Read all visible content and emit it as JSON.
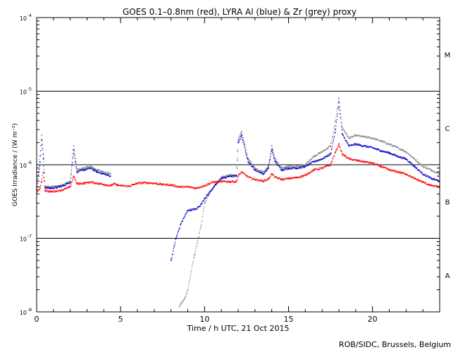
{
  "chart_data": {
    "type": "scatter",
    "title": "GOES 0.1–0.8nm (red), LYRA Al (blue) & Zr (grey) proxy",
    "xlabel": "Time / h UTC, 21 Oct 2015",
    "ylabel": "GOES Irradiance / (W m⁻²)",
    "xlim": [
      0,
      24
    ],
    "ylim": [
      1e-08,
      0.0001
    ],
    "yscale": "log",
    "x_ticks": [
      {
        "value": 0,
        "label": "0"
      },
      {
        "value": 5,
        "label": "5"
      },
      {
        "value": 10,
        "label": "10"
      },
      {
        "value": 15,
        "label": "15"
      },
      {
        "value": 20,
        "label": "20"
      }
    ],
    "y_ticks": [
      {
        "value": 1e-08,
        "base": "10",
        "exp": "-8"
      },
      {
        "value": 1e-07,
        "base": "10",
        "exp": "-7"
      },
      {
        "value": 1e-06,
        "base": "10",
        "exp": "-6"
      },
      {
        "value": 1e-05,
        "base": "10",
        "exp": "-5"
      },
      {
        "value": 0.0001,
        "base": "10",
        "exp": "-4"
      }
    ],
    "flare_class_lines": [
      1e-07,
      1e-06,
      1e-05
    ],
    "flare_classes": [
      {
        "label": "A",
        "value": 3.16e-08
      },
      {
        "label": "B",
        "value": 3.16e-07
      },
      {
        "label": "C",
        "value": 3.16e-06
      },
      {
        "label": "M",
        "value": 3.16e-05
      }
    ],
    "series": [
      {
        "color": "#ff0000",
        "x": [
          0.0,
          0.2,
          0.3,
          0.4,
          0.5,
          0.8,
          1.2,
          1.6,
          2.0,
          2.2,
          2.4,
          2.8,
          3.2,
          3.6,
          4.0,
          4.4,
          4.6,
          4.8,
          5.0,
          5.5,
          5.7,
          6.0,
          6.5,
          7.0,
          7.5,
          8.0,
          8.5,
          9.0,
          9.5,
          10.0,
          10.5,
          11.0,
          11.5,
          11.9,
          12.0,
          12.2,
          12.6,
          13.0,
          13.5,
          13.8,
          14.0,
          14.2,
          14.6,
          15.0,
          15.5,
          16.0,
          16.5,
          17.0,
          17.5,
          17.8,
          18.0,
          18.2,
          18.6,
          19.0,
          19.5,
          20.0,
          20.5,
          21.0,
          21.5,
          22.0,
          22.5,
          23.0,
          23.5,
          24.0
        ],
        "y": [
          4.2e-07,
          4.8e-07,
          6e-07,
          8e-07,
          4.5e-07,
          4.3e-07,
          4.4e-07,
          4.6e-07,
          5e-07,
          7e-07,
          5.5e-07,
          5.6e-07,
          5.8e-07,
          5.6e-07,
          5.4e-07,
          5.2e-07,
          5.5e-07,
          5.3e-07,
          5.2e-07,
          5.1e-07,
          5.3e-07,
          5.6e-07,
          5.7e-07,
          5.6e-07,
          5.4e-07,
          5.3e-07,
          5e-07,
          5e-07,
          4.8e-07,
          5.2e-07,
          5.8e-07,
          5.9e-07,
          5.9e-07,
          5.9e-07,
          7e-07,
          8e-07,
          6.8e-07,
          6.3e-07,
          6e-07,
          6.4e-07,
          7.5e-07,
          6.8e-07,
          6.3e-07,
          6.5e-07,
          6.7e-07,
          7.2e-07,
          8.5e-07,
          9e-07,
          1e-06,
          1.5e-06,
          1.9e-06,
          1.4e-06,
          1.2e-06,
          1.15e-06,
          1.1e-06,
          1.05e-06,
          9.5e-07,
          8.5e-07,
          8e-07,
          7.5e-07,
          6.5e-07,
          5.8e-07,
          5.2e-07,
          5e-07
        ]
      },
      {
        "color": "#0000cc",
        "x": [
          0.0,
          0.2,
          0.3,
          0.4,
          0.5,
          0.8,
          1.2,
          1.6,
          2.0,
          2.2,
          2.4,
          2.8,
          3.2,
          3.6,
          4.0,
          4.4,
          8.0,
          8.3,
          8.6,
          9.0,
          9.5,
          9.8,
          10.0,
          10.4,
          10.7,
          11.0,
          11.5,
          11.9,
          12.0,
          12.2,
          12.6,
          13.0,
          13.5,
          13.8,
          14.0,
          14.2,
          14.6,
          15.0,
          15.5,
          16.0,
          16.5,
          17.0,
          17.5,
          17.8,
          18.0,
          18.2,
          18.6,
          19.0,
          19.5,
          20.0,
          20.5,
          21.0,
          21.5,
          22.0,
          22.5,
          23.0,
          23.5,
          24.0
        ],
        "y": [
          4.6e-07,
          1.1e-06,
          2.2e-06,
          1.2e-06,
          4.9e-07,
          4.8e-07,
          4.9e-07,
          5.2e-07,
          5.8e-07,
          1.6e-06,
          8e-07,
          8.5e-07,
          9e-07,
          8e-07,
          7.5e-07,
          7e-07,
          5e-08,
          1e-07,
          1.6e-07,
          2.4e-07,
          2.5e-07,
          2.9e-07,
          3.5e-07,
          4.5e-07,
          5.5e-07,
          6.5e-07,
          7e-07,
          7e-07,
          2e-06,
          2.5e-06,
          1.1e-06,
          8.5e-07,
          7.5e-07,
          9e-07,
          1.6e-06,
          1.1e-06,
          8.5e-07,
          9e-07,
          9e-07,
          9.5e-07,
          1.1e-06,
          1.2e-06,
          1.4e-06,
          3e-06,
          7e-06,
          2.6e-06,
          1.8e-06,
          1.9e-06,
          1.8e-06,
          1.7e-06,
          1.55e-06,
          1.45e-06,
          1.3e-06,
          1.2e-06,
          9.5e-07,
          7.5e-07,
          6.5e-07,
          6e-07
        ]
      },
      {
        "color": "#888888",
        "x": [
          0.0,
          0.2,
          0.3,
          0.4,
          0.5,
          0.8,
          1.2,
          1.6,
          2.0,
          2.2,
          2.4,
          2.8,
          3.2,
          3.6,
          4.0,
          4.4,
          8.5,
          8.8,
          9.0,
          9.4,
          9.8,
          10.0,
          10.4,
          10.7,
          11.0,
          11.5,
          11.9,
          12.0,
          12.2,
          12.6,
          13.0,
          13.5,
          13.8,
          14.0,
          14.2,
          14.6,
          15.0,
          15.5,
          16.0,
          16.5,
          17.0,
          17.5,
          17.8,
          18.0,
          18.2,
          18.6,
          19.0,
          19.5,
          20.0,
          20.5,
          21.0,
          21.5,
          22.0,
          22.5,
          23.0,
          23.5,
          24.0
        ],
        "y": [
          4.8e-07,
          1.3e-06,
          2.5e-06,
          1.4e-06,
          5.1e-07,
          5e-07,
          5.1e-07,
          5.4e-07,
          6e-07,
          1.8e-06,
          8.5e-07,
          9e-07,
          9.5e-07,
          8.5e-07,
          8e-07,
          7.5e-07,
          1.2e-08,
          1.5e-08,
          2e-08,
          6e-08,
          1.5e-07,
          3e-07,
          4.5e-07,
          5.5e-07,
          6.8e-07,
          7.2e-07,
          7.2e-07,
          2.2e-06,
          2.8e-06,
          1.2e-06,
          9e-07,
          8e-07,
          9.5e-07,
          1.8e-06,
          1.2e-06,
          9e-07,
          9.5e-07,
          9.5e-07,
          1e-06,
          1.3e-06,
          1.5e-06,
          1.8e-06,
          4e-06,
          8e-06,
          3.2e-06,
          2.3e-06,
          2.5e-06,
          2.4e-06,
          2.3e-06,
          2.1e-06,
          1.9e-06,
          1.7e-06,
          1.5e-06,
          1.2e-06,
          9.5e-07,
          8.5e-07,
          7.5e-07
        ]
      }
    ]
  },
  "footer": {
    "credit": "ROB/SIDC, Brussels, Belgium"
  }
}
